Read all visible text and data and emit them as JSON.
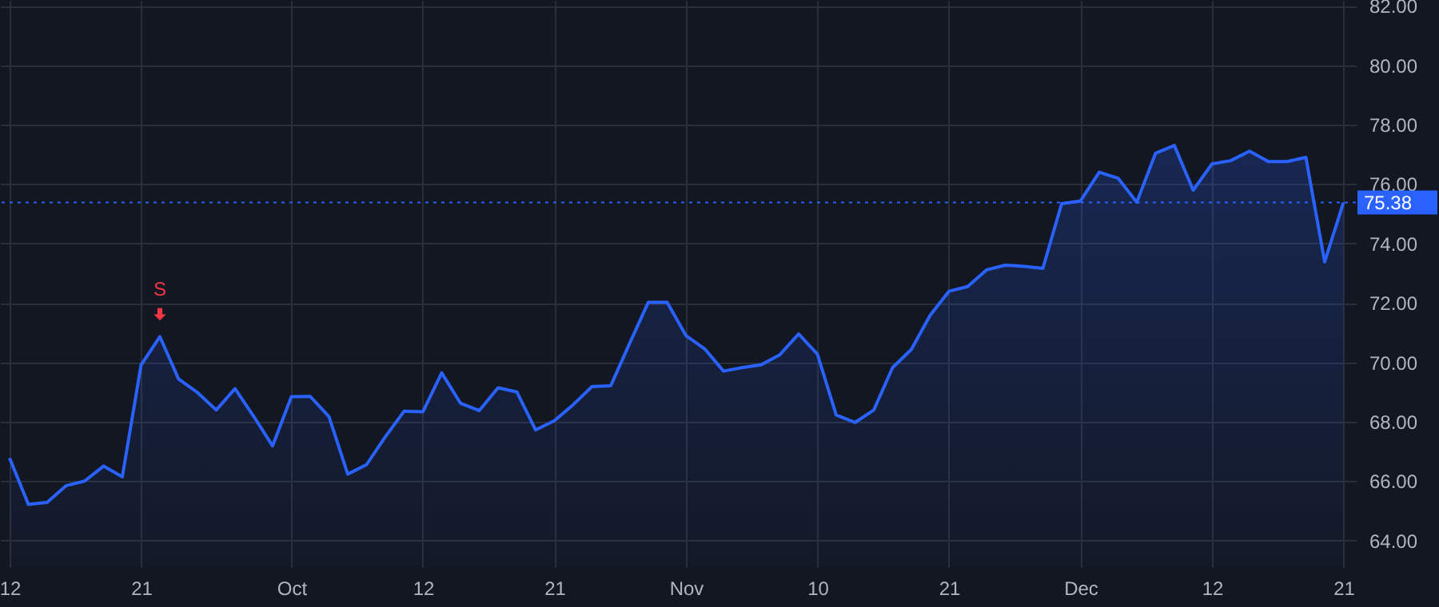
{
  "chart_data": {
    "type": "area",
    "categories": [
      "12",
      null,
      null,
      null,
      null,
      null,
      null,
      "21",
      null,
      null,
      null,
      null,
      null,
      null,
      null,
      "Oct",
      null,
      null,
      null,
      null,
      null,
      null,
      "12",
      null,
      null,
      null,
      null,
      null,
      null,
      "21",
      null,
      null,
      null,
      null,
      null,
      null,
      "Nov",
      null,
      null,
      null,
      null,
      null,
      null,
      "10",
      null,
      null,
      null,
      null,
      null,
      null,
      "21",
      null,
      null,
      null,
      null,
      null,
      null,
      "Dec",
      null,
      null,
      null,
      null,
      null,
      null,
      "12",
      null,
      null,
      null,
      null,
      null,
      null,
      "21"
    ],
    "series": [
      {
        "color": "#2962ff",
        "values": [
          66.77,
          65.21,
          65.28,
          65.84,
          66.0,
          66.5,
          66.14,
          69.91,
          70.86,
          69.43,
          68.98,
          68.39,
          69.11,
          68.17,
          67.18,
          68.84,
          68.85,
          68.17,
          66.23,
          66.55,
          67.49,
          68.35,
          68.33,
          69.64,
          68.62,
          68.37,
          69.14,
          69.0,
          67.72,
          68.03,
          68.57,
          69.18,
          69.21,
          70.63,
          72.02,
          72.02,
          70.9,
          70.45,
          69.7,
          69.82,
          69.91,
          70.25,
          70.95,
          70.27,
          68.22,
          67.97,
          68.39,
          69.82,
          70.43,
          71.58,
          72.39,
          72.55,
          73.11,
          73.27,
          73.23,
          73.16,
          75.34,
          75.43,
          76.4,
          76.2,
          75.39,
          77.04,
          77.3,
          75.79,
          76.68,
          76.79,
          77.11,
          76.76,
          76.76,
          76.9,
          73.38,
          75.38
        ]
      }
    ],
    "ylim": [
      63.1,
      82.2
    ],
    "yticks": [
      {
        "value": 64,
        "label": "64.00"
      },
      {
        "value": 66,
        "label": "66.00"
      },
      {
        "value": 68,
        "label": "68.00"
      },
      {
        "value": 70,
        "label": "70.00"
      },
      {
        "value": 72,
        "label": "72.00"
      },
      {
        "value": 74,
        "label": "74.00"
      },
      {
        "value": 76,
        "label": "76.00"
      },
      {
        "value": 78,
        "label": "78.00"
      },
      {
        "value": 80,
        "label": "80.00"
      },
      {
        "value": 82,
        "label": "82.00"
      }
    ],
    "grid": true,
    "line_style": "solid",
    "ref_lines": [
      {
        "axis": "y",
        "value": 75.38,
        "label": "75.38",
        "color": "#2962ff",
        "line_style": "dotted"
      }
    ],
    "annotations": [
      {
        "text": "S",
        "y": 70.86
      }
    ]
  }
}
